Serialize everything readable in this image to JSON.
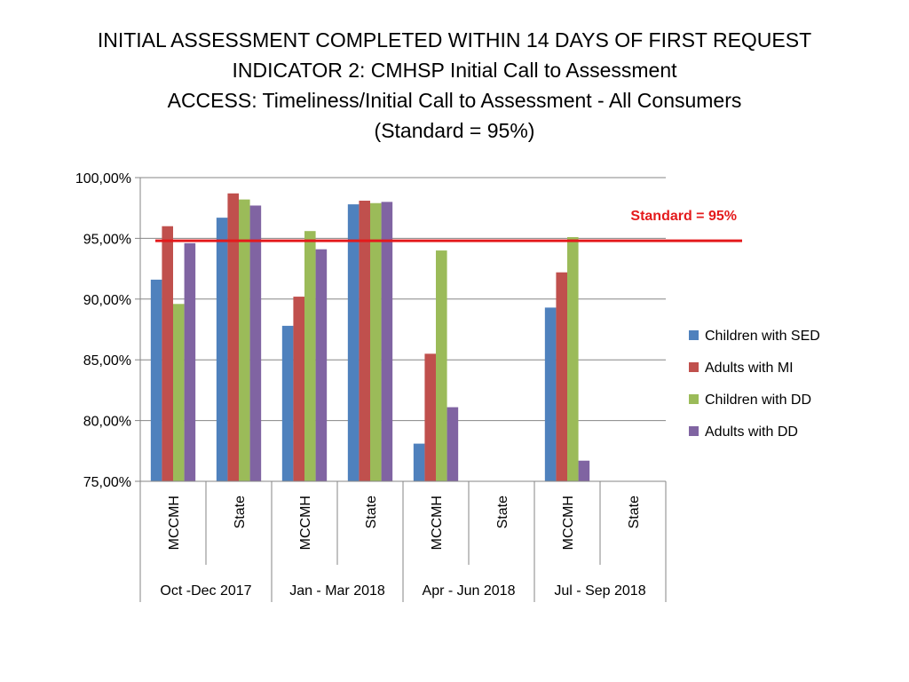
{
  "title_lines": [
    "INITIAL ASSESSMENT COMPLETED WITHIN 14 DAYS OF FIRST REQUEST",
    "INDICATOR 2:  CMHSP Initial Call to Assessment",
    "ACCESS:  Timeliness/Initial Call to Assessment - All Consumers",
    "(Standard = 95%)"
  ],
  "chart_data": {
    "type": "bar",
    "groups": [
      "Oct -Dec 2017",
      "Jan - Mar 2018",
      "Apr - Jun 2018",
      "Jul - Sep 2018"
    ],
    "subcategories": [
      "MCCMH",
      "State"
    ],
    "categories": [
      "Oct -Dec 2017 MCCMH",
      "Oct -Dec 2017 State",
      "Jan - Mar 2018 MCCMH",
      "Jan - Mar 2018 State",
      "Apr - Jun 2018 MCCMH",
      "Apr - Jun 2018 State",
      "Jul - Sep 2018 MCCMH",
      "Jul - Sep 2018 State"
    ],
    "series": [
      {
        "name": "Children with SED",
        "color": "#4f81bd",
        "values": [
          91.6,
          96.7,
          87.8,
          97.8,
          78.1,
          null,
          89.3,
          null
        ]
      },
      {
        "name": "Adults with MI",
        "color": "#c0504d",
        "values": [
          96.0,
          98.7,
          90.2,
          98.1,
          85.5,
          null,
          92.2,
          null
        ]
      },
      {
        "name": "Children with DD",
        "color": "#9bbb59",
        "values": [
          89.6,
          98.2,
          95.6,
          97.9,
          94.0,
          null,
          95.1,
          null
        ]
      },
      {
        "name": "Adults with DD",
        "color": "#8064a2",
        "values": [
          94.6,
          97.7,
          94.1,
          98.0,
          81.1,
          null,
          76.7,
          null
        ]
      }
    ],
    "ylim": [
      75,
      100
    ],
    "yticks": [
      75,
      80,
      85,
      90,
      95,
      100
    ],
    "ytick_labels": [
      "75,00%",
      "80,00%",
      "85,00%",
      "90,00%",
      "95,00%",
      "100,00%"
    ],
    "grid": true,
    "legend_position": "right",
    "standard": {
      "value": 94.8,
      "label": "Standard = 95%",
      "color": "#e41a1c"
    }
  }
}
